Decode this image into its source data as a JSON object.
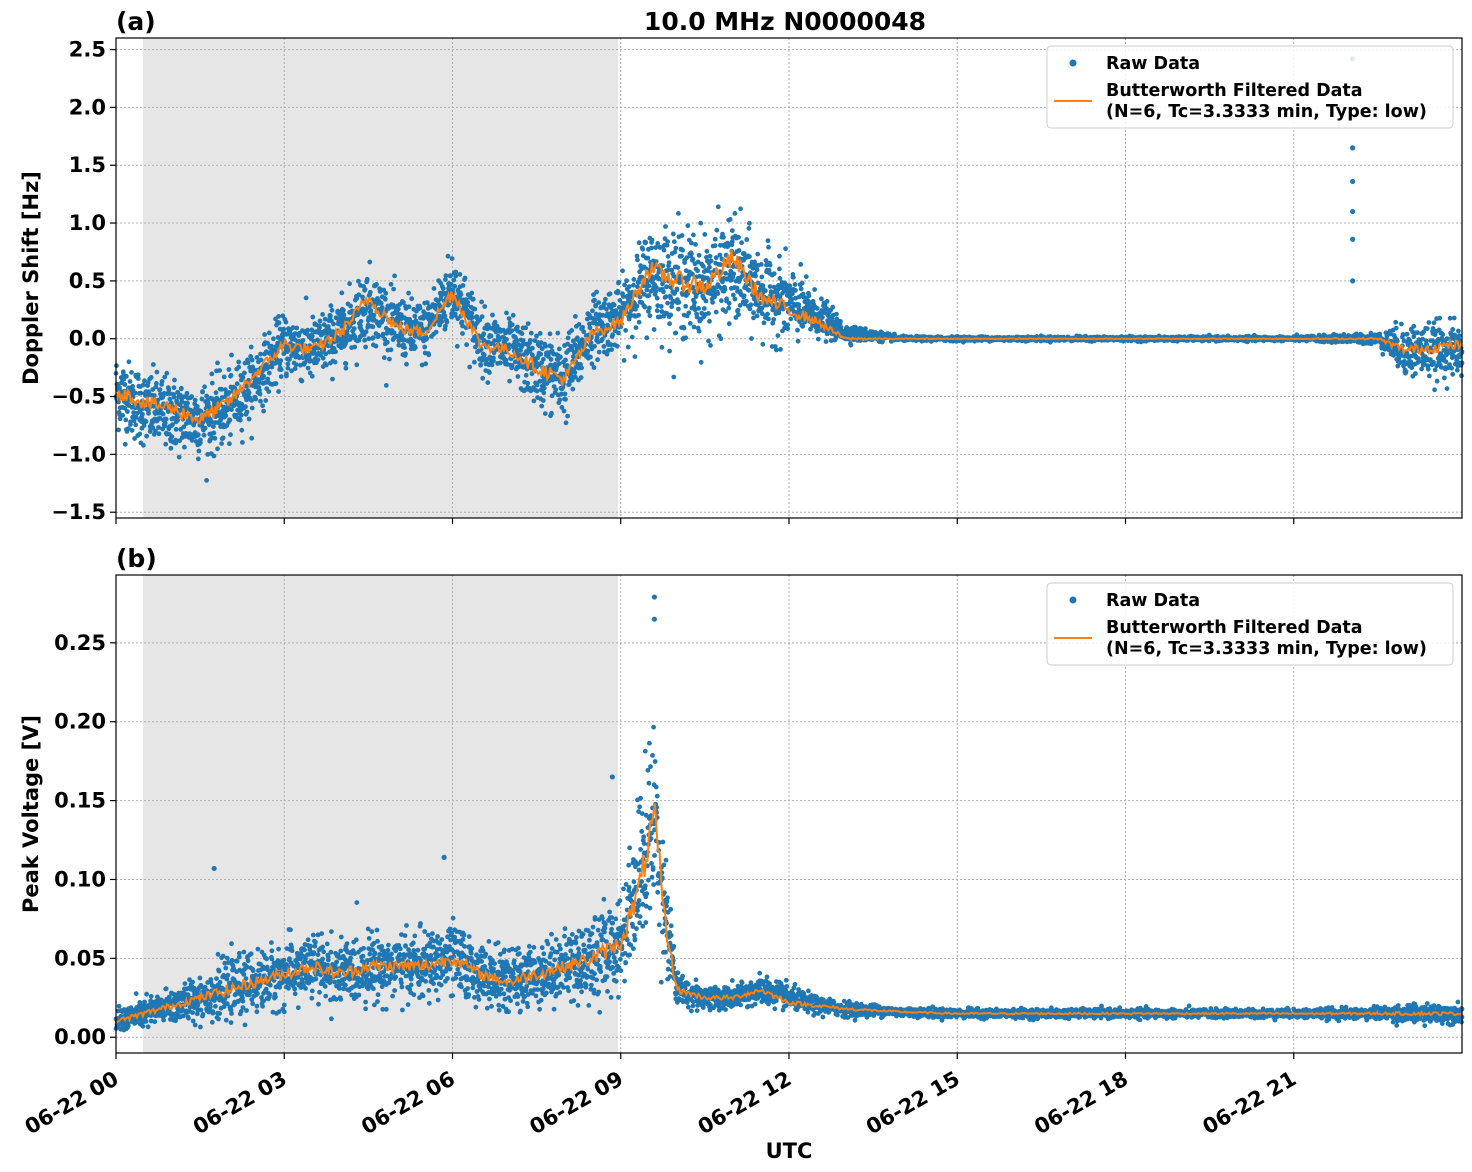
{
  "figure": {
    "title": "10.0 MHz N0000048",
    "xlabel": "UTC",
    "colors": {
      "raw": "#1f77b4",
      "filtered": "#ff7f0e",
      "shade": "#e6e6e6"
    }
  },
  "chart_data": [
    {
      "panel_label": "(a)",
      "type": "scatter",
      "title": "10.0 MHz N0000048",
      "xlabel": "",
      "ylabel": "Doppler Shift [Hz]",
      "xlim_hours": [
        0,
        24
      ],
      "xticks": [
        "06-22 00",
        "06-22 03",
        "06-22 06",
        "06-22 09",
        "06-22 12",
        "06-22 15",
        "06-22 18",
        "06-22 21"
      ],
      "ylim": [
        -1.55,
        2.6
      ],
      "yticks": [
        "−1.5",
        "−1.0",
        "−0.5",
        "0.0",
        "0.5",
        "1.0",
        "1.5",
        "2.0",
        "2.5"
      ],
      "yticks_values": [
        -1.5,
        -1.0,
        -0.5,
        0.0,
        0.5,
        1.0,
        1.5,
        2.0,
        2.5
      ],
      "grid": true,
      "shaded_interval_hours": [
        0.48,
        8.95
      ],
      "legend": {
        "position": "top-right",
        "entries": [
          "Raw Data",
          "Butterworth Filtered Data",
          "(N=6, Tc=3.3333 min, Type: low)"
        ]
      },
      "series": [
        {
          "name": "Raw Data",
          "style": "points",
          "x": [
            0,
            0.5,
            1,
            1.5,
            2,
            2.5,
            3,
            3.5,
            4,
            4.5,
            5,
            5.5,
            6,
            6.5,
            7,
            7.5,
            8,
            8.5,
            9,
            9.5,
            10,
            10.5,
            11,
            11.5,
            12,
            12.5,
            13,
            14,
            15,
            18,
            21,
            22.5,
            23,
            24
          ],
          "y": [
            -0.45,
            -0.6,
            -0.65,
            -0.7,
            -0.6,
            -0.35,
            -0.05,
            -0.1,
            0.05,
            0.3,
            0.1,
            0.05,
            0.45,
            0.0,
            -0.1,
            -0.25,
            -0.35,
            0.1,
            0.2,
            0.55,
            0.5,
            0.45,
            0.6,
            0.4,
            0.3,
            0.2,
            0.05,
            0.0,
            0.0,
            0.0,
            0.0,
            0.0,
            -0.1,
            -0.1
          ],
          "spread": [
            0.35,
            0.35,
            0.35,
            0.35,
            0.35,
            0.3,
            0.3,
            0.3,
            0.3,
            0.35,
            0.3,
            0.3,
            0.35,
            0.3,
            0.3,
            0.35,
            0.4,
            0.3,
            0.3,
            0.45,
            0.5,
            0.5,
            0.5,
            0.4,
            0.35,
            0.2,
            0.08,
            0.02,
            0.02,
            0.02,
            0.02,
            0.05,
            0.25,
            0.25
          ],
          "outliers": {
            "x": [
              22.05,
              22.05,
              22.05,
              22.05,
              22.05,
              22.05
            ],
            "y": [
              2.42,
              1.65,
              1.36,
              1.1,
              0.86,
              0.5
            ]
          }
        },
        {
          "name": "Butterworth Filtered Data",
          "style": "line",
          "x": [
            0,
            0.5,
            1,
            1.5,
            2,
            2.5,
            3,
            3.5,
            4,
            4.5,
            5,
            5.5,
            6,
            6.5,
            7,
            7.5,
            8,
            8.5,
            9,
            9.5,
            10,
            10.5,
            11,
            11.5,
            12,
            12.5,
            13,
            14,
            15,
            18,
            21,
            22.5,
            23,
            24
          ],
          "y": [
            -0.45,
            -0.55,
            -0.6,
            -0.7,
            -0.55,
            -0.3,
            -0.05,
            -0.1,
            0.05,
            0.35,
            0.1,
            0.05,
            0.4,
            -0.05,
            -0.1,
            -0.25,
            -0.35,
            0.05,
            0.15,
            0.6,
            0.5,
            0.45,
            0.7,
            0.35,
            0.25,
            0.15,
            0.0,
            0.0,
            0.0,
            0.0,
            0.0,
            0.0,
            -0.1,
            -0.05
          ]
        }
      ]
    },
    {
      "panel_label": "(b)",
      "type": "scatter",
      "title": "",
      "xlabel": "UTC",
      "ylabel": "Peak Voltage [V]",
      "xlim_hours": [
        0,
        24
      ],
      "xticks": [
        "06-22 00",
        "06-22 03",
        "06-22 06",
        "06-22 09",
        "06-22 12",
        "06-22 15",
        "06-22 18",
        "06-22 21"
      ],
      "ylim": [
        -0.01,
        0.293
      ],
      "yticks": [
        "0.00",
        "0.05",
        "0.10",
        "0.15",
        "0.20",
        "0.25"
      ],
      "yticks_values": [
        0.0,
        0.05,
        0.1,
        0.15,
        0.2,
        0.25
      ],
      "grid": true,
      "shaded_interval_hours": [
        0.48,
        8.95
      ],
      "legend": {
        "position": "top-right",
        "entries": [
          "Raw Data",
          "Butterworth Filtered Data",
          "(N=6, Tc=3.3333 min, Type: low)"
        ]
      },
      "series": [
        {
          "name": "Raw Data",
          "style": "points",
          "x": [
            0,
            0.5,
            1,
            1.5,
            2,
            2.5,
            3,
            3.5,
            4,
            4.5,
            5,
            5.5,
            6,
            6.5,
            7,
            7.5,
            8,
            8.5,
            9,
            9.3,
            9.6,
            9.8,
            10,
            10.5,
            11,
            11.5,
            12,
            12.5,
            13,
            14,
            15,
            18,
            21,
            22.5,
            23,
            24
          ],
          "y": [
            0.01,
            0.015,
            0.02,
            0.025,
            0.03,
            0.035,
            0.04,
            0.045,
            0.04,
            0.045,
            0.045,
            0.045,
            0.05,
            0.04,
            0.035,
            0.04,
            0.045,
            0.05,
            0.06,
            0.1,
            0.14,
            0.08,
            0.03,
            0.025,
            0.025,
            0.03,
            0.025,
            0.02,
            0.018,
            0.016,
            0.015,
            0.015,
            0.015,
            0.015,
            0.015,
            0.015
          ],
          "spread": [
            0.008,
            0.01,
            0.012,
            0.015,
            0.02,
            0.02,
            0.022,
            0.022,
            0.022,
            0.022,
            0.022,
            0.022,
            0.025,
            0.02,
            0.02,
            0.022,
            0.022,
            0.03,
            0.03,
            0.05,
            0.07,
            0.04,
            0.012,
            0.008,
            0.008,
            0.01,
            0.008,
            0.006,
            0.005,
            0.003,
            0.003,
            0.003,
            0.003,
            0.004,
            0.006,
            0.006
          ],
          "outliers": {
            "x": [
              9.6,
              9.6,
              8.85,
              1.75,
              5.85
            ],
            "y": [
              0.279,
              0.265,
              0.165,
              0.107,
              0.114
            ]
          }
        },
        {
          "name": "Butterworth Filtered Data",
          "style": "line",
          "x": [
            0,
            0.5,
            1,
            1.5,
            2,
            2.5,
            3,
            3.5,
            4,
            4.5,
            5,
            5.5,
            6,
            6.5,
            7,
            7.5,
            8,
            8.5,
            9,
            9.3,
            9.6,
            9.8,
            10,
            10.5,
            11,
            11.5,
            12,
            12.5,
            13,
            14,
            15,
            18,
            21,
            22.5,
            23,
            24
          ],
          "y": [
            0.01,
            0.015,
            0.02,
            0.025,
            0.03,
            0.035,
            0.04,
            0.045,
            0.04,
            0.045,
            0.045,
            0.045,
            0.05,
            0.04,
            0.035,
            0.04,
            0.045,
            0.05,
            0.06,
            0.09,
            0.14,
            0.07,
            0.03,
            0.025,
            0.025,
            0.03,
            0.022,
            0.02,
            0.018,
            0.016,
            0.015,
            0.015,
            0.015,
            0.015,
            0.015,
            0.015
          ]
        }
      ]
    }
  ]
}
